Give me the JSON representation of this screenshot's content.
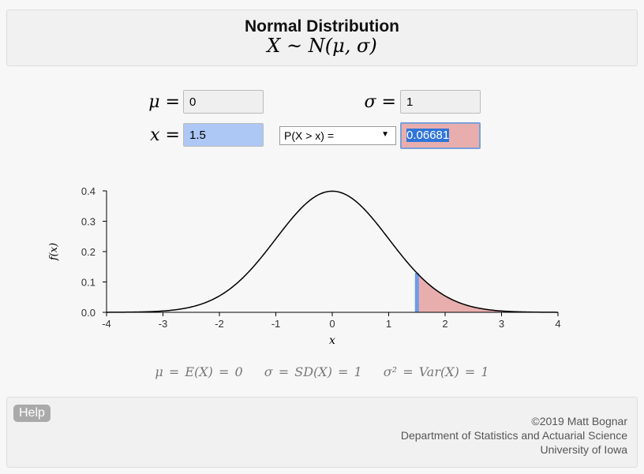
{
  "header": {
    "title": "Normal Distribution",
    "formula": "X ~ N(μ, σ)"
  },
  "inputs": {
    "mu_label": "μ =",
    "mu_value": "0",
    "sigma_label": "σ =",
    "sigma_value": "1",
    "x_label": "x =",
    "x_value": "1.5",
    "prob_select": "P(X > x) =",
    "prob_value": "0.06681"
  },
  "colors": {
    "x_input": "#adc8f5",
    "result": "#e8aeae",
    "shade": "#e8aeae",
    "marker": "#6f9be6"
  },
  "chart_data": {
    "type": "line",
    "title": "",
    "xlabel": "x",
    "ylabel": "f(x)",
    "xlim": [
      -4,
      4
    ],
    "ylim": [
      0,
      0.4
    ],
    "xticks": [
      "-4",
      "-3",
      "-2",
      "-1",
      "0",
      "1",
      "2",
      "3",
      "4"
    ],
    "yticks": [
      "0.0",
      "0.1",
      "0.2",
      "0.3",
      "0.4"
    ],
    "mu": 0,
    "sigma": 1,
    "shaded_region": [
      1.5,
      4
    ]
  },
  "moments": [
    "μ = E(X) = 0",
    "σ = SD(X) = 1",
    "σ² = Var(X) = 1"
  ],
  "footer": {
    "help": "Help",
    "credits": [
      "©2019 Matt Bognar",
      "Department of Statistics and Actuarial Science",
      "University of Iowa"
    ]
  }
}
